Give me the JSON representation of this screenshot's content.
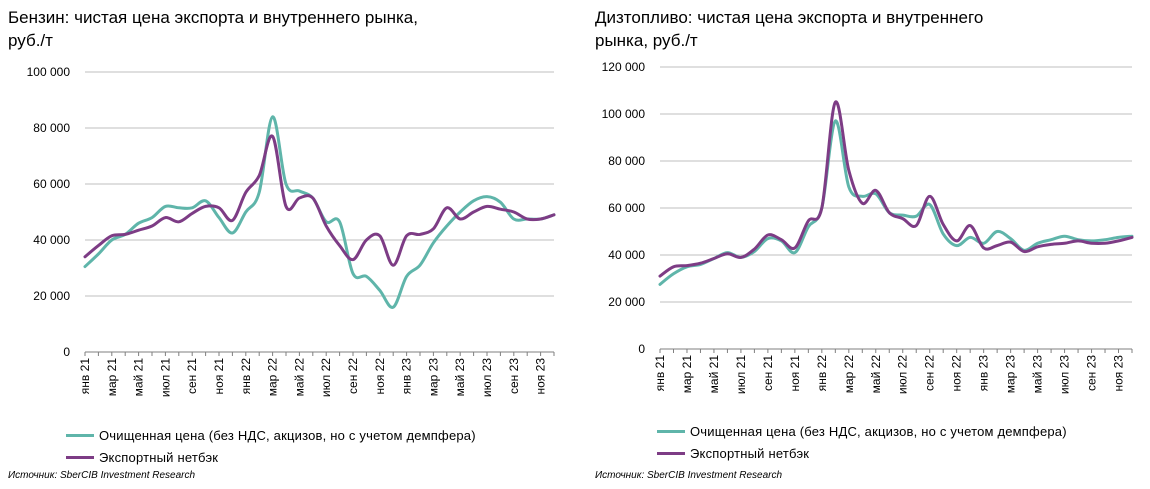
{
  "colors": {
    "cleaned": "#5fb5aa",
    "export": "#7d3c85",
    "grid": "#bfbfbf",
    "axis": "#7f7f7f"
  },
  "legend": {
    "cleaned": "Очищенная цена (без НДС, акцизов, но с учетом демпфера)",
    "export": "Экспортный нетбэк"
  },
  "source": "Источник: SberCIB Investment Research",
  "chart_data": [
    {
      "type": "line",
      "title": "Бензин: чистая цена экспорта и внутреннего рынка, руб./т",
      "ylim": [
        0,
        100000
      ],
      "yticks": [
        0,
        20000,
        40000,
        60000,
        80000,
        100000
      ],
      "ytick_labels": [
        "0",
        "20 000",
        "40 000",
        "60 000",
        "80 000",
        "100 000"
      ],
      "x_labels": [
        "янв 21",
        "мар 21",
        "май 21",
        "июл 21",
        "сен 21",
        "ноя 21",
        "янв 22",
        "мар 22",
        "май 22",
        "июл 22",
        "сен 22",
        "ноя 22",
        "янв 23",
        "мар 23",
        "май 23",
        "июл 23",
        "сен 23",
        "ноя 23"
      ],
      "grid": true,
      "legend_position": "bottom",
      "series": [
        {
          "name": "Очищенная цена (без НДС, акцизов, но с учетом демпфера)",
          "values": [
            30500,
            35000,
            40000,
            42000,
            46000,
            48000,
            52000,
            51500,
            51500,
            54000,
            48000,
            42500,
            50000,
            57000,
            84000,
            60000,
            57500,
            55000,
            46500,
            46500,
            28000,
            27000,
            22000,
            16000,
            27000,
            31000,
            39000,
            45000,
            50000,
            54000,
            55500,
            53500,
            47500,
            47500,
            47500,
            49000
          ]
        },
        {
          "name": "Экспортный нетбэк",
          "values": [
            34000,
            38000,
            41500,
            42000,
            43500,
            45000,
            48000,
            46500,
            49500,
            52000,
            51500,
            47000,
            57000,
            63000,
            77000,
            52000,
            55000,
            55000,
            45000,
            38000,
            33000,
            40000,
            41500,
            31000,
            41500,
            42000,
            44000,
            51500,
            47500,
            50000,
            52000,
            51000,
            50000,
            47500,
            47500,
            49000
          ]
        }
      ]
    },
    {
      "type": "line",
      "title": "Дизтопливо: чистая цена экспорта и внутреннего рынка, руб./т",
      "ylim": [
        0,
        120000
      ],
      "yticks": [
        0,
        20000,
        40000,
        60000,
        80000,
        100000,
        120000
      ],
      "ytick_labels": [
        "0",
        "20 000",
        "40 000",
        "60 000",
        "80 000",
        "100 000",
        "120 000"
      ],
      "x_labels": [
        "янв 21",
        "мар 21",
        "май 21",
        "июл 21",
        "сен 21",
        "ноя 21",
        "янв 22",
        "мар 22",
        "май 22",
        "июл 22",
        "сен 22",
        "ноя 22",
        "янв 23",
        "мар 23",
        "май 23",
        "июл 23",
        "сен 23",
        "ноя 23"
      ],
      "grid": true,
      "legend_position": "bottom",
      "series": [
        {
          "name": "Очищенная цена (без НДС, акцизов, но с учетом демпфера)",
          "values": [
            27500,
            32000,
            35000,
            36000,
            38500,
            41000,
            39000,
            41500,
            47000,
            46000,
            41000,
            52000,
            60000,
            97000,
            69000,
            65000,
            66000,
            58000,
            57000,
            56500,
            61500,
            49000,
            44000,
            47500,
            45000,
            50000,
            47000,
            42000,
            45000,
            46500,
            48000,
            46500,
            46000,
            46500,
            47500,
            48000
          ]
        },
        {
          "name": "Экспортный нетбэк",
          "values": [
            31000,
            35000,
            35500,
            36500,
            38500,
            40500,
            39000,
            42500,
            48500,
            46500,
            43000,
            54500,
            60000,
            105000,
            76000,
            62000,
            67500,
            58000,
            55500,
            52500,
            65000,
            53000,
            46000,
            52500,
            43000,
            44000,
            45500,
            41500,
            43500,
            44500,
            45000,
            46000,
            45000,
            45000,
            46000,
            47500
          ]
        }
      ]
    }
  ]
}
